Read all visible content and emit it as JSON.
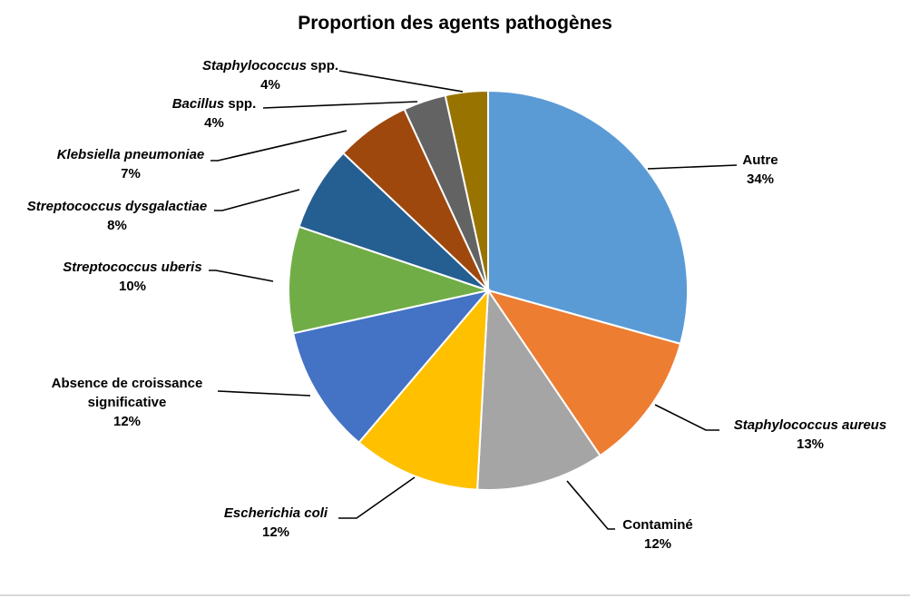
{
  "chart_data": {
    "type": "pie",
    "title": "Proportion des agents pathogènes",
    "categories": [
      "Autre",
      "Staphylococcus aureus",
      "Contaminé",
      "Escherichia coli",
      "Absence de croissance significative",
      "Streptococcus uberis",
      "Streptococcus dysgalactiae",
      "Klebsiella pneumoniae",
      "Bacillus spp.",
      "Staphylococcus spp."
    ],
    "values": [
      34,
      13,
      12,
      12,
      12,
      10,
      8,
      7,
      4,
      4
    ],
    "value_labels": [
      "34%",
      "13%",
      "12%",
      "12%",
      "12%",
      "10%",
      "8%",
      "7%",
      "4%",
      "4%"
    ],
    "colors": [
      "#5b9bd5",
      "#ed7d31",
      "#a5a5a5",
      "#ffc000",
      "#4472c4",
      "#70ad47",
      "#255e91",
      "#9e480e",
      "#636363",
      "#997300"
    ],
    "legend": "none (data labels with leader lines)"
  },
  "labels": [
    {
      "name": "Autre",
      "italic": "",
      "plain": "Autre",
      "pct": "34%"
    },
    {
      "name": "Staphylococcus aureus",
      "italic": "Staphylococcus aureus",
      "plain": "",
      "pct": "13%"
    },
    {
      "name": "Contaminé",
      "italic": "",
      "plain": "Contaminé",
      "pct": "12%"
    },
    {
      "name": "Escherichia coli",
      "italic": "Escherichia coli",
      "plain": "",
      "pct": "12%"
    },
    {
      "name": "Absence de croissance significative",
      "line1": "Absence de croissance",
      "line2": "significative",
      "pct": "12%"
    },
    {
      "name": "Streptococcus uberis",
      "italic": "Streptococcus uberis",
      "plain": "",
      "pct": "10%"
    },
    {
      "name": "Streptococcus dysgalactiae",
      "italic": "Streptococcus dysgalactiae",
      "plain": "",
      "pct": "8%"
    },
    {
      "name": "Klebsiella pneumoniae",
      "italic": "Klebsiella pneumoniae",
      "plain": "",
      "pct": "7%"
    },
    {
      "name": "Bacillus spp.",
      "italic": "Bacillus",
      "plain": " spp.",
      "pct": "4%"
    },
    {
      "name": "Staphylococcus spp.",
      "italic": "Staphylococcus",
      "plain": " spp.",
      "pct": "4%"
    }
  ]
}
